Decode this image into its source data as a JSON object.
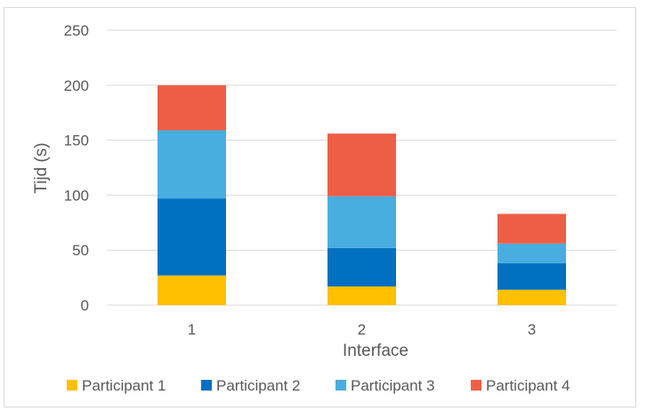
{
  "chart_data": {
    "type": "bar",
    "stacked": true,
    "categories": [
      "1",
      "2",
      "3"
    ],
    "series": [
      {
        "name": "Participant 1",
        "color": "#FFC000",
        "values": [
          27,
          17,
          14
        ]
      },
      {
        "name": "Participant 2",
        "color": "#0070C0",
        "values": [
          70,
          35,
          24
        ]
      },
      {
        "name": "Participant 3",
        "color": "#48AEE0",
        "values": [
          62,
          47,
          18
        ]
      },
      {
        "name": "Participant 4",
        "color": "#EE5E46",
        "values": [
          41,
          57,
          27
        ]
      }
    ],
    "xlabel": "Interface",
    "ylabel": "Tijd (s)",
    "ylim": [
      0,
      250
    ],
    "yticks": [
      0,
      50,
      100,
      150,
      200,
      250
    ],
    "grid": true,
    "legend_position": "bottom"
  }
}
